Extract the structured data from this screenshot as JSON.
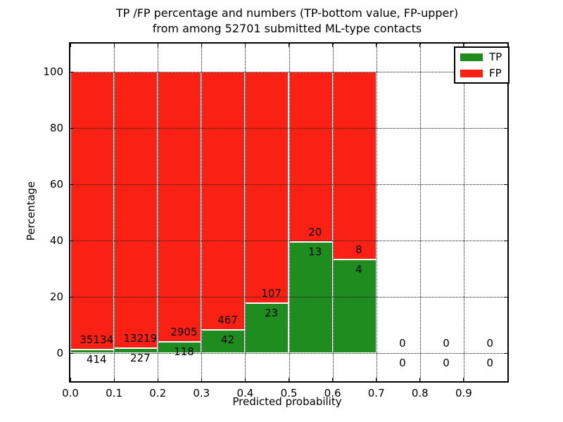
{
  "title": {
    "line1": "TP /FP percentage and numbers (TP-bottom value, FP-upper)",
    "line2": "from among 52701 submitted ML-type contacts"
  },
  "legend": {
    "items": [
      {
        "label": "TP",
        "color": "#1e8c1e"
      },
      {
        "label": "FP",
        "color": "#fa2014"
      }
    ]
  },
  "colors": {
    "tp_green": "#1e8c1e",
    "fp_red": "#fa2014",
    "bar_edge": "#ffffff",
    "grid": "#111111",
    "text": "#000000"
  },
  "chart_data": {
    "type": "bar",
    "stacked": true,
    "title": "TP /FP percentage and numbers (TP-bottom value, FP-upper) from among 52701 submitted ML-type contacts",
    "xlabel": "Predicted probability",
    "ylabel": "Percentage",
    "total_contacts": 52701,
    "xlim": [
      0.0,
      1.0
    ],
    "ylim": [
      -10,
      110
    ],
    "x_ticks": [
      "0.0",
      "0.1",
      "0.2",
      "0.3",
      "0.4",
      "0.5",
      "0.6",
      "0.7",
      "0.8",
      "0.9"
    ],
    "y_ticks": [
      0,
      20,
      40,
      60,
      80,
      100
    ],
    "grid": "dotted, both axes",
    "legend_position": "upper right",
    "label_rule": "FP count printed above TP-bar top, TP count printed below it",
    "bins": [
      {
        "range": [
          0.0,
          0.1
        ],
        "tp": 414,
        "fp": 35134,
        "tp_pct": 1.16,
        "fp_pct": 98.84
      },
      {
        "range": [
          0.1,
          0.2
        ],
        "tp": 227,
        "fp": 13219,
        "tp_pct": 1.69,
        "fp_pct": 98.31
      },
      {
        "range": [
          0.2,
          0.3
        ],
        "tp": 118,
        "fp": 2905,
        "tp_pct": 3.9,
        "fp_pct": 96.1
      },
      {
        "range": [
          0.3,
          0.4
        ],
        "tp": 42,
        "fp": 467,
        "tp_pct": 8.25,
        "fp_pct": 91.75
      },
      {
        "range": [
          0.4,
          0.5
        ],
        "tp": 23,
        "fp": 107,
        "tp_pct": 17.69,
        "fp_pct": 82.31
      },
      {
        "range": [
          0.5,
          0.6
        ],
        "tp": 13,
        "fp": 20,
        "tp_pct": 39.39,
        "fp_pct": 60.61
      },
      {
        "range": [
          0.6,
          0.7
        ],
        "tp": 4,
        "fp": 8,
        "tp_pct": 33.33,
        "fp_pct": 66.67
      },
      {
        "range": [
          0.7,
          0.8
        ],
        "tp": 0,
        "fp": 0,
        "tp_pct": 0,
        "fp_pct": 0
      },
      {
        "range": [
          0.8,
          0.9
        ],
        "tp": 0,
        "fp": 0,
        "tp_pct": 0,
        "fp_pct": 0
      },
      {
        "range": [
          0.9,
          1.0
        ],
        "tp": 0,
        "fp": 0,
        "tp_pct": 0,
        "fp_pct": 0
      }
    ]
  }
}
